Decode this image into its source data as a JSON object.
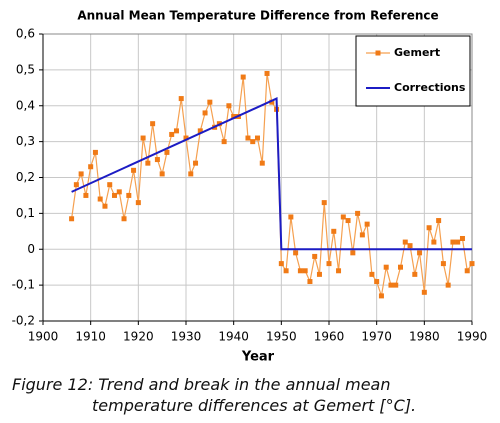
{
  "chart_data": {
    "type": "line",
    "title": "Annual Mean Temperature Difference from Reference",
    "x_label": "Year",
    "caption": "Figure 12: Trend and break in the annual mean temperature differences at Gemert [°C].",
    "xlim": [
      1900,
      1990
    ],
    "xticks": [
      1900,
      1910,
      1920,
      1930,
      1940,
      1950,
      1960,
      1970,
      1980,
      1990
    ],
    "ylim": [
      -0.2,
      0.6
    ],
    "yticks": [
      {
        "value": -0.2,
        "label": "-0,2"
      },
      {
        "value": -0.1,
        "label": "-0,1"
      },
      {
        "value": 0,
        "label": "0"
      },
      {
        "value": 0.1,
        "label": "0,1"
      },
      {
        "value": 0.2,
        "label": "0,2"
      },
      {
        "value": 0.3,
        "label": "0,3"
      },
      {
        "value": 0.4,
        "label": "0,4"
      },
      {
        "value": 0.5,
        "label": "0,5"
      },
      {
        "value": 0.6,
        "label": "0,6"
      }
    ],
    "grid": true,
    "legend": "upper right",
    "series": [
      {
        "name": "Gemert",
        "color": "#f07a16",
        "marker": "square",
        "x": [
          1906,
          1907,
          1908,
          1909,
          1910,
          1911,
          1912,
          1913,
          1914,
          1915,
          1916,
          1917,
          1918,
          1919,
          1920,
          1921,
          1922,
          1923,
          1924,
          1925,
          1926,
          1927,
          1928,
          1929,
          1930,
          1931,
          1932,
          1933,
          1934,
          1935,
          1936,
          1937,
          1938,
          1939,
          1940,
          1941,
          1942,
          1943,
          1944,
          1945,
          1946,
          1947,
          1948,
          1949,
          1950,
          1951,
          1952,
          1953,
          1954,
          1955,
          1956,
          1957,
          1958,
          1959,
          1960,
          1961,
          1962,
          1963,
          1964,
          1965,
          1966,
          1967,
          1968,
          1969,
          1970,
          1971,
          1972,
          1973,
          1974,
          1975,
          1976,
          1977,
          1978,
          1979,
          1980,
          1981,
          1982,
          1983,
          1984,
          1985,
          1986,
          1987,
          1988,
          1989,
          1990
        ],
        "values": [
          0.085,
          0.18,
          0.21,
          0.15,
          0.23,
          0.27,
          0.14,
          0.12,
          0.18,
          0.15,
          0.16,
          0.085,
          0.15,
          0.22,
          0.13,
          0.31,
          0.24,
          0.35,
          0.25,
          0.21,
          0.27,
          0.32,
          0.33,
          0.42,
          0.31,
          0.21,
          0.24,
          0.33,
          0.38,
          0.41,
          0.34,
          0.35,
          0.3,
          0.4,
          0.37,
          0.37,
          0.48,
          0.31,
          0.3,
          0.31,
          0.24,
          0.49,
          0.41,
          0.39,
          -0.04,
          -0.06,
          0.09,
          -0.01,
          -0.06,
          -0.06,
          -0.09,
          -0.02,
          -0.07,
          0.13,
          -0.04,
          0.05,
          -0.06,
          0.09,
          0.08,
          -0.01,
          0.1,
          0.04,
          0.07,
          -0.07,
          -0.09,
          -0.13,
          -0.05,
          -0.1,
          -0.1,
          -0.05,
          0.02,
          0.01,
          -0.07,
          -0.01,
          -0.12,
          0.06,
          0.02,
          0.08,
          -0.04,
          -0.1,
          0.02,
          0.02,
          0.03,
          -0.06,
          -0.04
        ]
      },
      {
        "name": "Corrections",
        "color": "#1c1cc4",
        "x": [
          1906,
          1949,
          1950,
          1990
        ],
        "values": [
          0.16,
          0.42,
          0,
          0
        ]
      }
    ]
  }
}
